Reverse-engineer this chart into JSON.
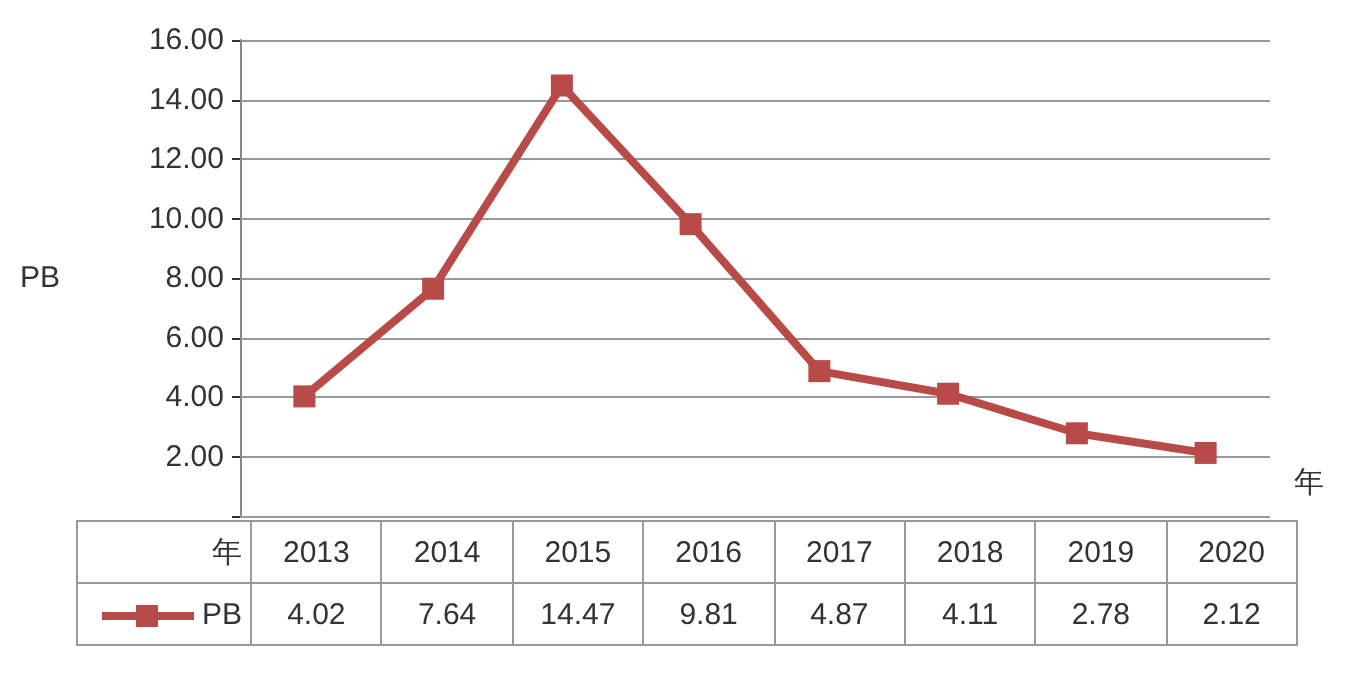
{
  "chart_data": {
    "type": "line",
    "xlabel": "年",
    "ylabel": "PB",
    "categories": [
      "2013",
      "2014",
      "2015",
      "2016",
      "2017",
      "2018",
      "2019",
      "2020"
    ],
    "series": [
      {
        "name": "PB",
        "color": "#b84a47",
        "values": [
          4.02,
          7.64,
          14.47,
          9.81,
          4.87,
          4.11,
          2.78,
          2.12
        ]
      }
    ],
    "ylim": [
      0,
      16
    ],
    "yticks": [
      {
        "value": 0,
        "label": null
      },
      {
        "value": 2,
        "label": "2.00"
      },
      {
        "value": 4,
        "label": "4.00"
      },
      {
        "value": 6,
        "label": "6.00"
      },
      {
        "value": 8,
        "label": "8.00"
      },
      {
        "value": 10,
        "label": "10.00"
      },
      {
        "value": 12,
        "label": "12.00"
      },
      {
        "value": 14,
        "label": "14.00"
      },
      {
        "value": 16,
        "label": "16.00"
      }
    ],
    "grid": "y",
    "legend": "bottom left",
    "marker": "square",
    "line_style": "solid",
    "data_labels": true
  }
}
